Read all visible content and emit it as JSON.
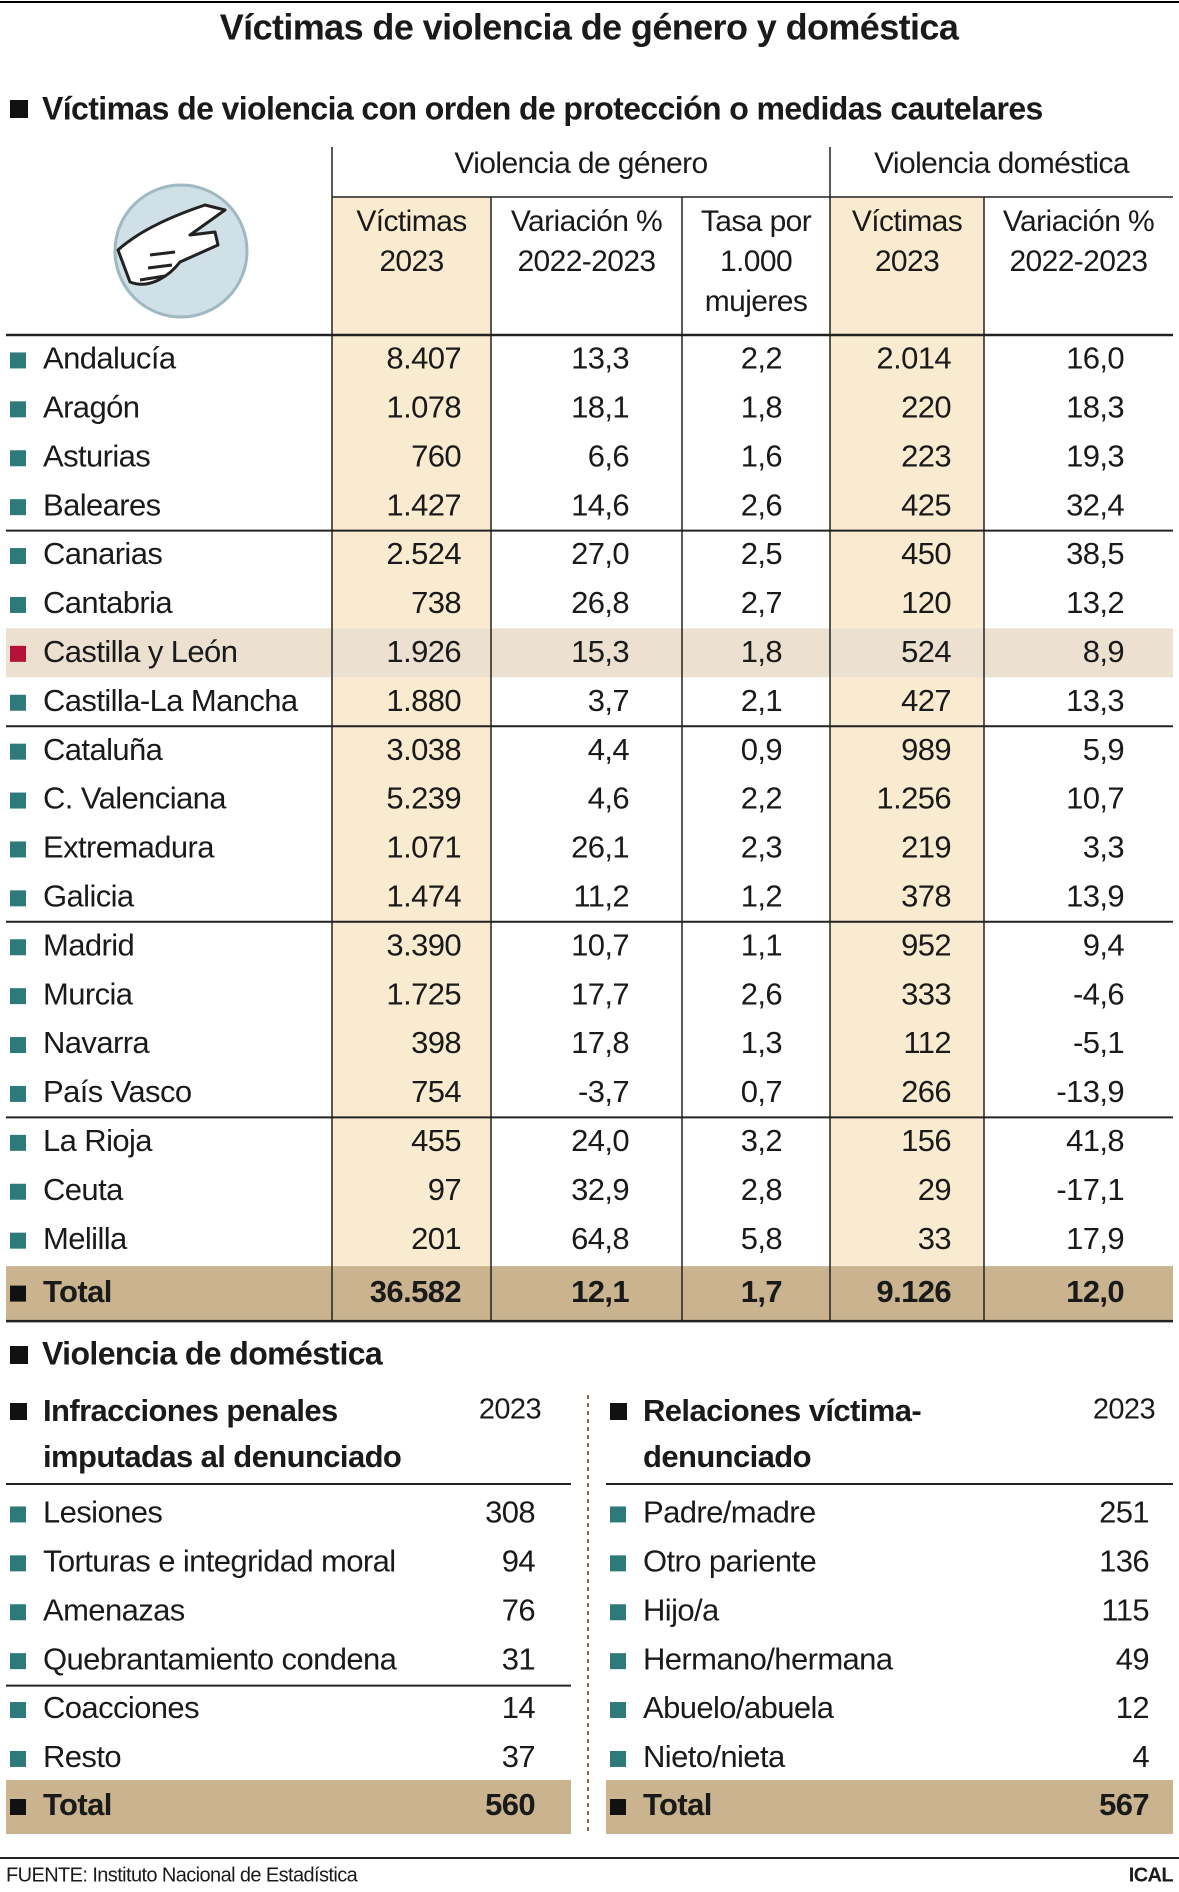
{
  "title": "Víctimas de violencia de género y doméstica",
  "protection": {
    "title": "Víctimas de violencia con orden de protección o medidas cautelares",
    "groups": [
      "Violencia de género",
      "Violencia doméstica"
    ],
    "columns": [
      [
        "Víctimas",
        "2023"
      ],
      [
        "Variación %",
        "2022-2023"
      ],
      [
        "Tasa por",
        "1.000",
        "mujeres"
      ],
      [
        "Víctimas",
        "2023"
      ],
      [
        "Variación %",
        "2022-2023"
      ]
    ],
    "rows": [
      [
        "Andalucía",
        "8.407",
        "13,3",
        "2,2",
        "2.014",
        "16,0"
      ],
      [
        "Aragón",
        "1.078",
        "18,1",
        "1,8",
        "220",
        "18,3"
      ],
      [
        "Asturias",
        "760",
        "6,6",
        "1,6",
        "223",
        "19,3"
      ],
      [
        "Baleares",
        "1.427",
        "14,6",
        "2,6",
        "425",
        "32,4"
      ],
      [
        "Canarias",
        "2.524",
        "27,0",
        "2,5",
        "450",
        "38,5"
      ],
      [
        "Cantabria",
        "738",
        "26,8",
        "2,7",
        "120",
        "13,2"
      ],
      [
        "Castilla y León",
        "1.926",
        "15,3",
        "1,8",
        "524",
        "8,9"
      ],
      [
        "Castilla-La Mancha",
        "1.880",
        "3,7",
        "2,1",
        "427",
        "13,3"
      ],
      [
        "Cataluña",
        "3.038",
        "4,4",
        "0,9",
        "989",
        "5,9"
      ],
      [
        "C. Valenciana",
        "5.239",
        "4,6",
        "2,2",
        "1.256",
        "10,7"
      ],
      [
        "Extremadura",
        "1.071",
        "26,1",
        "2,3",
        "219",
        "3,3"
      ],
      [
        "Galicia",
        "1.474",
        "11,2",
        "1,2",
        "378",
        "13,9"
      ],
      [
        "Madrid",
        "3.390",
        "10,7",
        "1,1",
        "952",
        "9,4"
      ],
      [
        "Murcia",
        "1.725",
        "17,7",
        "2,6",
        "333",
        "-4,6"
      ],
      [
        "Navarra",
        "398",
        "17,8",
        "1,3",
        "112",
        "-5,1"
      ],
      [
        "País Vasco",
        "754",
        "-3,7",
        "0,7",
        "266",
        "-13,9"
      ],
      [
        "La Rioja",
        "455",
        "24,0",
        "3,2",
        "156",
        "41,8"
      ],
      [
        "Ceuta",
        "97",
        "32,9",
        "2,8",
        "29",
        "-17,1"
      ],
      [
        "Melilla",
        "201",
        "64,8",
        "5,8",
        "33",
        "17,9"
      ]
    ],
    "total": [
      "Total",
      "36.582",
      "12,1",
      "1,7",
      "9.126",
      "12,0"
    ]
  },
  "domestic": {
    "title": "Violencia de doméstica",
    "offenses": {
      "title": [
        "Infracciones penales",
        "imputadas al denunciado"
      ],
      "year": "2023",
      "rows": [
        [
          "Lesiones",
          "308"
        ],
        [
          "Torturas e integridad moral",
          "94"
        ],
        [
          "Amenazas",
          "76"
        ],
        [
          "Quebrantamiento condena",
          "31"
        ],
        [
          "Coacciones",
          "14"
        ],
        [
          "Resto",
          "37"
        ]
      ],
      "total": [
        "Total",
        "560"
      ]
    },
    "relations": {
      "title": [
        "Relaciones víctima-",
        "denunciado"
      ],
      "year": "2023",
      "rows": [
        [
          "Padre/madre",
          "251"
        ],
        [
          "Otro pariente",
          "136"
        ],
        [
          "Hijo/a",
          "115"
        ],
        [
          "Hermano/hermana",
          "49"
        ],
        [
          "Abuelo/abuela",
          "12"
        ],
        [
          "Nieto/nieta",
          "4"
        ]
      ],
      "total": [
        "Total",
        "567"
      ]
    }
  },
  "source": "FUENTE: Instituto Nacional de Estadística",
  "credit": "ICAL"
}
